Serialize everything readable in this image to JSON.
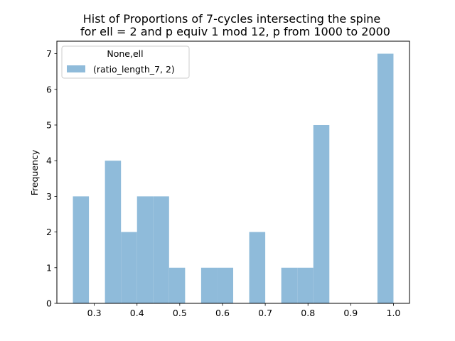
{
  "chart_data": {
    "type": "bar",
    "title_line1": "Hist of Proportions of 7-cycles intersecting the spine",
    "title_line2": "for ell = 2 and p equiv 1 mod 12, p from 1000 to 2000",
    "xlabel": "",
    "ylabel": "Frequency",
    "legend": {
      "title": "None,ell",
      "placement": "upper-left",
      "entries": [
        {
          "label": "(ratio_length_7, 2)",
          "color": "#8fbbda"
        }
      ]
    },
    "xlim": [
      0.2125,
      1.0375
    ],
    "ylim": [
      0,
      7.35
    ],
    "x_ticks": [
      0.3,
      0.4,
      0.5,
      0.6,
      0.7,
      0.8,
      0.9,
      1.0
    ],
    "x_tick_labels": [
      "0.3",
      "0.4",
      "0.5",
      "0.6",
      "0.7",
      "0.8",
      "0.9",
      "1.0"
    ],
    "y_ticks": [
      0,
      1,
      2,
      3,
      4,
      5,
      6,
      7
    ],
    "y_tick_labels": [
      "0",
      "1",
      "2",
      "3",
      "4",
      "5",
      "6",
      "7"
    ],
    "series": [
      {
        "name": "(ratio_length_7, 2)",
        "color": "#8fbbda",
        "bin_edges": [
          0.25,
          0.2875,
          0.325,
          0.3625,
          0.4,
          0.4375,
          0.475,
          0.5125,
          0.55,
          0.5875,
          0.625,
          0.6625,
          0.7,
          0.7375,
          0.775,
          0.8125,
          0.85,
          0.8875,
          0.925,
          0.9625,
          1.0
        ],
        "counts": [
          3,
          0,
          4,
          2,
          3,
          3,
          1,
          0,
          1,
          1,
          0,
          2,
          0,
          1,
          1,
          5,
          0,
          0,
          0,
          7
        ]
      }
    ]
  }
}
